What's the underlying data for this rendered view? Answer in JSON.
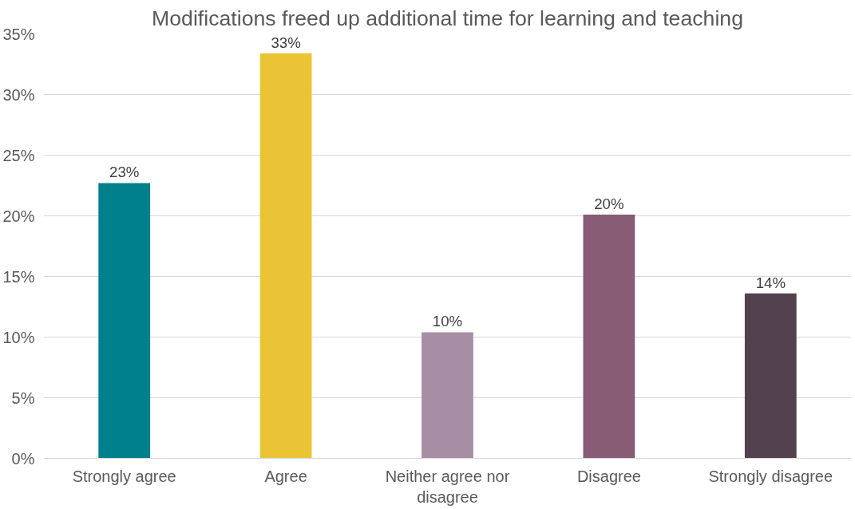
{
  "chart_data": {
    "type": "bar",
    "title": "Modifications freed up additional time for learning and teaching",
    "categories": [
      "Strongly agree",
      "Agree",
      "Neither agree nor disagree",
      "Disagree",
      "Strongly disagree"
    ],
    "values": [
      22.7,
      33.4,
      10.4,
      20.1,
      13.6
    ],
    "value_labels": [
      "23%",
      "33%",
      "10%",
      "20%",
      "14%"
    ],
    "colors": [
      "#007f8c",
      "#ebc435",
      "#a78ea4",
      "#875c74",
      "#54414f"
    ],
    "ylim": [
      0,
      35
    ],
    "yticks": [
      {
        "value": 0,
        "label": "0%"
      },
      {
        "value": 5,
        "label": "5%"
      },
      {
        "value": 10,
        "label": "10%"
      },
      {
        "value": 15,
        "label": "15%"
      },
      {
        "value": 20,
        "label": "20%"
      },
      {
        "value": 25,
        "label": "25%"
      },
      {
        "value": 30,
        "label": "30%"
      },
      {
        "value": 35,
        "label": "35%"
      }
    ],
    "grid": "y"
  }
}
